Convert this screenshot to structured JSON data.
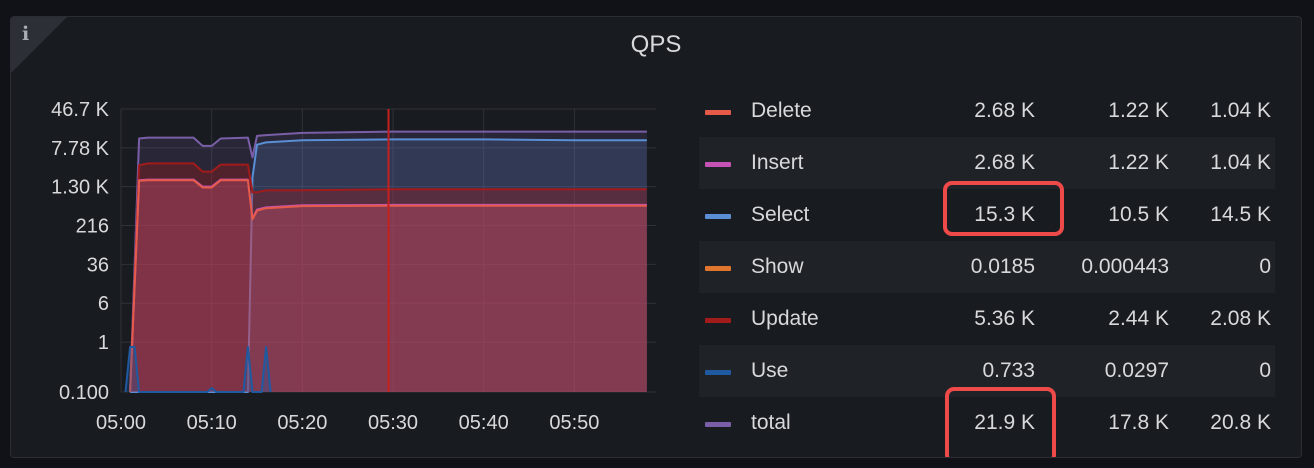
{
  "panel": {
    "title": "QPS",
    "info_icon": "info-icon"
  },
  "colors": {
    "Delete": "#e65a4a",
    "Insert": "#c552b5",
    "Select": "#5a8fd6",
    "Show": "#e0752d",
    "Update": "#a11b1b",
    "Use": "#1f5aa1",
    "total": "#7a5fa8",
    "highlight": "#ee4a4a"
  },
  "legend": {
    "rows": [
      {
        "name": "Delete",
        "v1": "2.68 K",
        "v2": "1.22 K",
        "v3": "1.04 K"
      },
      {
        "name": "Insert",
        "v1": "2.68 K",
        "v2": "1.22 K",
        "v3": "1.04 K"
      },
      {
        "name": "Select",
        "v1": "15.3 K",
        "v2": "10.5 K",
        "v3": "14.5 K"
      },
      {
        "name": "Show",
        "v1": "0.0185",
        "v2": "0.000443",
        "v3": "0"
      },
      {
        "name": "Update",
        "v1": "5.36 K",
        "v2": "2.44 K",
        "v3": "2.08 K"
      },
      {
        "name": "Use",
        "v1": "0.733",
        "v2": "0.0297",
        "v3": "0"
      },
      {
        "name": "total",
        "v1": "21.9 K",
        "v2": "17.8 K",
        "v3": "20.8 K"
      }
    ]
  },
  "chart_data": {
    "type": "area",
    "title": "QPS",
    "yscale": "log",
    "ylim": [
      0.1,
      46700
    ],
    "y_ticks": [
      0.1,
      1,
      6,
      36,
      216,
      1300,
      7780,
      46700
    ],
    "y_tick_labels": [
      "0.100",
      "1",
      "6",
      "36",
      "216",
      "1.30 K",
      "7.78 K",
      "46.7 K"
    ],
    "x_ticks": [
      "05:00",
      "05:10",
      "05:20",
      "05:30",
      "05:40",
      "05:50"
    ],
    "x_tick_minutes": [
      0,
      10,
      20,
      30,
      40,
      50
    ],
    "xlim": [
      0,
      59
    ],
    "vertical_marker_minute": 29.5,
    "grid": true,
    "legend": "right",
    "x": [
      1,
      2,
      3,
      8,
      9,
      10,
      11,
      14,
      14.5,
      15,
      16,
      20,
      30,
      40,
      50,
      58
    ],
    "series": [
      {
        "name": "total",
        "values": [
          0.1,
          12000,
          12500,
          12500,
          8500,
          8500,
          12000,
          12500,
          5000,
          13500,
          14000,
          15500,
          16500,
          16500,
          16500,
          16500
        ]
      },
      {
        "name": "Select",
        "values": [
          0.1,
          0.1,
          0.1,
          0.1,
          0.1,
          0.1,
          0.1,
          0.1,
          2000,
          9000,
          10000,
          11000,
          11500,
          11500,
          11000,
          11000
        ]
      },
      {
        "name": "Update",
        "values": [
          0.1,
          3500,
          3800,
          3800,
          2600,
          2600,
          3600,
          3600,
          1000,
          1000,
          1100,
          1100,
          1150,
          1150,
          1150,
          1150
        ]
      },
      {
        "name": "Insert",
        "values": [
          0.1,
          1750,
          1800,
          1800,
          1300,
          1300,
          1800,
          1800,
          300,
          450,
          500,
          550,
          560,
          560,
          560,
          560
        ]
      },
      {
        "name": "Delete",
        "values": [
          0.1,
          1700,
          1750,
          1750,
          1250,
          1250,
          1750,
          1750,
          290,
          430,
          480,
          530,
          540,
          540,
          540,
          540
        ]
      },
      {
        "name": "Use",
        "x": [
          0.5,
          1,
          1.2,
          1.5,
          2,
          2.5,
          3,
          9.5,
          10,
          10.5,
          13.5,
          14,
          14.5,
          15.5,
          16,
          16.5
        ],
        "values": [
          0.1,
          0.8,
          0.8,
          0.8,
          0.1,
          0.1,
          0.1,
          0.1,
          0.12,
          0.1,
          0.1,
          0.8,
          0.1,
          0.1,
          0.8,
          0.1
        ]
      }
    ]
  }
}
